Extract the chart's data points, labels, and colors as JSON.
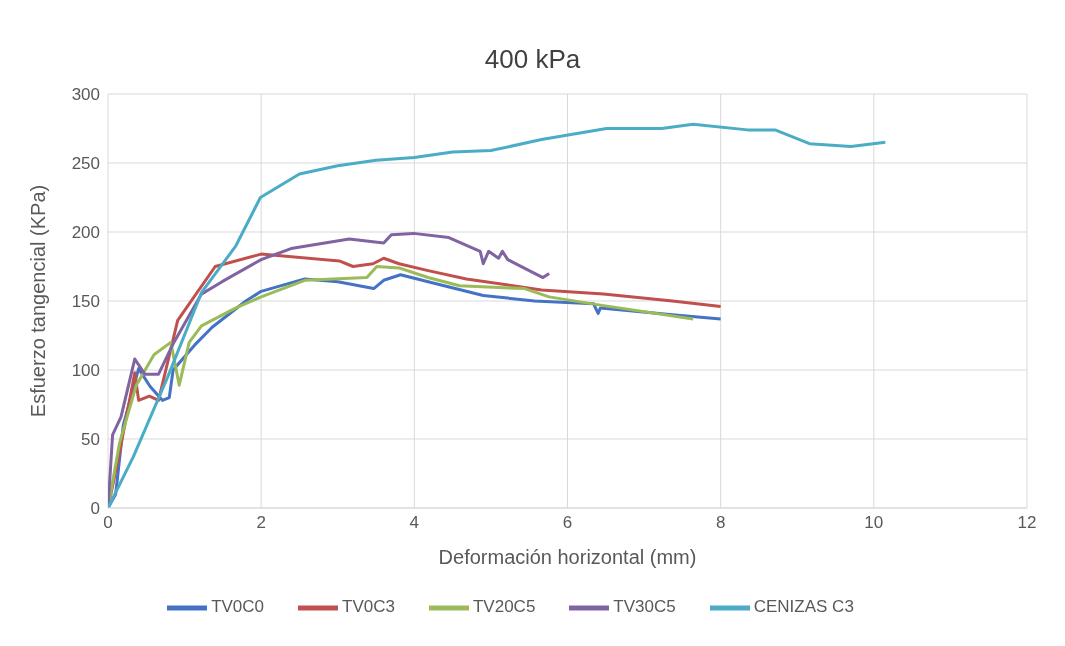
{
  "chart_data": {
    "type": "line",
    "title": "400 kPa",
    "xlabel": "Deformación horizontal (mm)",
    "ylabel": "Esfuerzo tangencial (KPa)",
    "xlim": [
      0,
      12
    ],
    "xticks": [
      0,
      2,
      4,
      6,
      8,
      10,
      12
    ],
    "ylim": [
      0,
      300
    ],
    "yticks": [
      0,
      50,
      100,
      150,
      200,
      250,
      300
    ],
    "grid": true,
    "legend": "bottom",
    "marker": "none",
    "line_style": "solid",
    "series": [
      {
        "name": "TV0C0",
        "color": "#4472c4",
        "x": [
          0,
          0.1,
          0.2,
          0.4,
          0.55,
          0.71,
          0.8,
          0.85,
          1.13,
          1.36,
          1.8,
          2,
          2.57,
          3.0,
          3.47,
          3.6,
          3.82,
          4.18,
          4.9,
          5.57,
          6.34,
          6.4,
          6.43,
          7.37,
          8.0
        ],
        "values": [
          0,
          10,
          60,
          101,
          88,
          78,
          80,
          100,
          118,
          131,
          150,
          157,
          166,
          164,
          159,
          165,
          169,
          164,
          154,
          150,
          148,
          141,
          145,
          140,
          137
        ]
      },
      {
        "name": "TV0C3",
        "color": "#c0504d",
        "x": [
          0,
          0.15,
          0.35,
          0.4,
          0.54,
          0.66,
          0.91,
          1.4,
          2,
          3.02,
          3.2,
          3.46,
          3.6,
          3.8,
          4.18,
          4.68,
          5.66,
          6.47,
          7.37,
          8.0
        ],
        "values": [
          0,
          40,
          98,
          78,
          81,
          78,
          136,
          175,
          184,
          179,
          175,
          177,
          181,
          177,
          172,
          166,
          158,
          155,
          150,
          146
        ]
      },
      {
        "name": "TV20C5",
        "color": "#9bbb59",
        "x": [
          0,
          0.15,
          0.37,
          0.6,
          0.82,
          0.93,
          1.06,
          1.22,
          1.67,
          2,
          2.57,
          3.38,
          3.51,
          3.8,
          4.18,
          4.59,
          5.44,
          5.76,
          6.43,
          7.64
        ],
        "values": [
          0,
          47,
          89,
          111,
          120,
          89,
          120,
          132,
          145,
          153,
          165,
          167,
          175,
          174,
          167,
          161,
          159,
          153,
          147,
          137
        ]
      },
      {
        "name": "TV30C5",
        "color": "#8064a2",
        "x": [
          0,
          0.06,
          0.17,
          0.35,
          0.48,
          0.66,
          0.86,
          1.22,
          1.49,
          2,
          2.39,
          3.15,
          3.6,
          3.7,
          3.99,
          4.45,
          4.86,
          4.9,
          4.97,
          5.1,
          5.15,
          5.22,
          5.57,
          5.68,
          5.76
        ],
        "values": [
          0,
          53,
          66,
          108,
          97,
          97,
          120,
          155,
          164,
          180,
          188,
          195,
          192,
          198,
          199,
          196,
          186,
          177,
          186,
          181,
          186,
          180,
          170,
          167,
          170
        ]
      },
      {
        "name": "CENIZAS C3",
        "color": "#4bacc6",
        "x": [
          0,
          0.33,
          0.78,
          1.22,
          1.67,
          1.99,
          2.5,
          3,
          3.5,
          4,
          4.5,
          5,
          5.66,
          6.51,
          7.23,
          7.64,
          8.35,
          8.71,
          9.16,
          9.7,
          10.15
        ],
        "values": [
          0,
          37,
          95,
          156,
          190,
          225,
          242,
          248,
          252,
          254,
          258,
          259,
          267,
          275,
          275,
          278,
          274,
          274,
          264,
          262,
          265
        ]
      }
    ]
  }
}
